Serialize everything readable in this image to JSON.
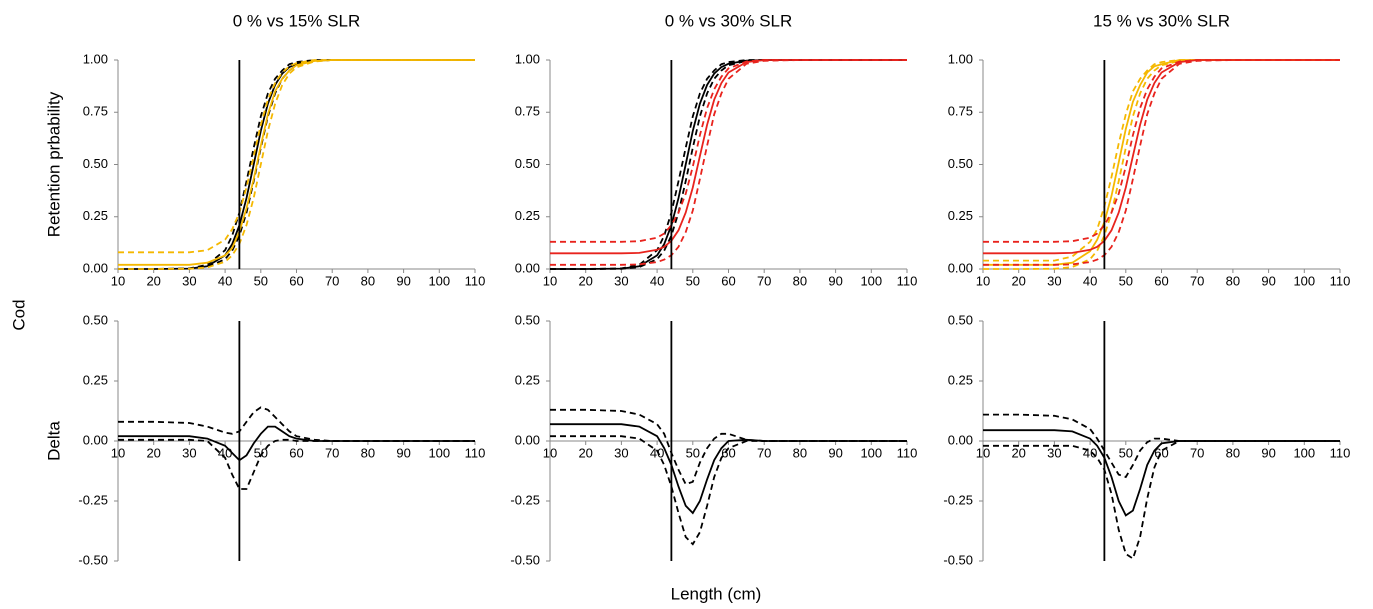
{
  "row_label": "Cod",
  "xlabel": "Length (cm)",
  "chart_data": [
    {
      "type": "line",
      "title": "0 % vs 15% SLR",
      "ylabel": "Retention prbability",
      "reference_x": 44,
      "xlim": [
        10,
        110
      ],
      "xticks": [
        10,
        20,
        30,
        40,
        50,
        60,
        70,
        80,
        90,
        100,
        110
      ],
      "ylim": [
        0,
        1
      ],
      "yticks": [
        {
          "value": 0,
          "label": "0.00"
        },
        {
          "value": 0.25,
          "label": "0.25"
        },
        {
          "value": 0.5,
          "label": "0.50"
        },
        {
          "value": 0.75,
          "label": "0.75"
        },
        {
          "value": 1,
          "label": "1.00"
        }
      ],
      "x": [
        10,
        20,
        30,
        35,
        40,
        42,
        44,
        46,
        48,
        50,
        52,
        54,
        56,
        58,
        60,
        65,
        70,
        80,
        110
      ],
      "series": [
        {
          "color": "#000000",
          "dash": false,
          "values": [
            0,
            0,
            0.002,
            0.013,
            0.065,
            0.119,
            0.209,
            0.339,
            0.5,
            0.661,
            0.791,
            0.881,
            0.935,
            0.966,
            0.982,
            0.997,
            1,
            1,
            1
          ]
        },
        {
          "color": "#000000",
          "dash": true,
          "values": [
            0,
            0,
            0.003,
            0.02,
            0.09,
            0.16,
            0.27,
            0.42,
            0.58,
            0.73,
            0.84,
            0.91,
            0.95,
            0.98,
            0.99,
            1,
            1,
            1,
            1
          ]
        },
        {
          "color": "#000000",
          "dash": true,
          "values": [
            0,
            0,
            0.001,
            0.009,
            0.047,
            0.088,
            0.16,
            0.27,
            0.42,
            0.58,
            0.73,
            0.84,
            0.91,
            0.95,
            0.975,
            0.995,
            1,
            1,
            1
          ]
        },
        {
          "color": "#f5b800",
          "dash": false,
          "values": [
            0.02,
            0.02,
            0.02,
            0.03,
            0.065,
            0.1,
            0.18,
            0.29,
            0.43,
            0.59,
            0.74,
            0.85,
            0.91,
            0.95,
            0.975,
            0.995,
            1,
            1,
            1
          ]
        },
        {
          "color": "#f5b800",
          "dash": true,
          "values": [
            0.08,
            0.08,
            0.08,
            0.09,
            0.14,
            0.19,
            0.27,
            0.39,
            0.54,
            0.69,
            0.81,
            0.89,
            0.94,
            0.97,
            0.985,
            1,
            1,
            1,
            1
          ]
        },
        {
          "color": "#f5b800",
          "dash": true,
          "values": [
            0,
            0,
            0.001,
            0.007,
            0.035,
            0.065,
            0.12,
            0.21,
            0.34,
            0.5,
            0.66,
            0.79,
            0.88,
            0.935,
            0.965,
            0.993,
            1,
            1,
            1
          ]
        }
      ]
    },
    {
      "type": "line",
      "title": "0 % vs 30% SLR",
      "reference_x": 44,
      "xlim": [
        10,
        110
      ],
      "xticks": [
        10,
        20,
        30,
        40,
        50,
        60,
        70,
        80,
        90,
        100,
        110
      ],
      "ylim": [
        0,
        1
      ],
      "yticks": [
        {
          "value": 0,
          "label": "0.00"
        },
        {
          "value": 0.25,
          "label": "0.25"
        },
        {
          "value": 0.5,
          "label": "0.50"
        },
        {
          "value": 0.75,
          "label": "0.75"
        },
        {
          "value": 1,
          "label": "1.00"
        }
      ],
      "x": [
        10,
        20,
        30,
        35,
        40,
        42,
        44,
        46,
        48,
        50,
        52,
        54,
        56,
        58,
        60,
        65,
        70,
        80,
        110
      ],
      "series": [
        {
          "color": "#000000",
          "dash": false,
          "values": [
            0,
            0,
            0.002,
            0.013,
            0.065,
            0.119,
            0.209,
            0.339,
            0.5,
            0.661,
            0.791,
            0.881,
            0.935,
            0.966,
            0.982,
            0.997,
            1,
            1,
            1
          ]
        },
        {
          "color": "#000000",
          "dash": true,
          "values": [
            0,
            0,
            0.003,
            0.02,
            0.09,
            0.16,
            0.27,
            0.42,
            0.58,
            0.73,
            0.84,
            0.91,
            0.95,
            0.98,
            0.99,
            1,
            1,
            1,
            1
          ]
        },
        {
          "color": "#000000",
          "dash": true,
          "values": [
            0,
            0,
            0.001,
            0.009,
            0.047,
            0.088,
            0.16,
            0.27,
            0.42,
            0.58,
            0.73,
            0.84,
            0.91,
            0.95,
            0.975,
            0.995,
            1,
            1,
            1
          ]
        },
        {
          "color": "#e8231d",
          "dash": false,
          "values": [
            0.075,
            0.075,
            0.075,
            0.077,
            0.092,
            0.106,
            0.135,
            0.185,
            0.27,
            0.39,
            0.54,
            0.69,
            0.81,
            0.89,
            0.94,
            0.99,
            1,
            1,
            1
          ]
        },
        {
          "color": "#e8231d",
          "dash": true,
          "values": [
            0.13,
            0.13,
            0.13,
            0.133,
            0.15,
            0.17,
            0.21,
            0.27,
            0.36,
            0.49,
            0.64,
            0.77,
            0.86,
            0.92,
            0.96,
            0.993,
            1,
            1,
            1
          ]
        },
        {
          "color": "#e8231d",
          "dash": true,
          "values": [
            0.02,
            0.02,
            0.02,
            0.022,
            0.033,
            0.045,
            0.066,
            0.106,
            0.176,
            0.28,
            0.43,
            0.59,
            0.74,
            0.84,
            0.91,
            0.982,
            0.996,
            1,
            1
          ]
        }
      ]
    },
    {
      "type": "line",
      "title": "15 % vs 30% SLR",
      "reference_x": 44,
      "xlim": [
        10,
        110
      ],
      "xticks": [
        10,
        20,
        30,
        40,
        50,
        60,
        70,
        80,
        90,
        100,
        110
      ],
      "ylim": [
        0,
        1
      ],
      "yticks": [
        {
          "value": 0,
          "label": "0.00"
        },
        {
          "value": 0.25,
          "label": "0.25"
        },
        {
          "value": 0.5,
          "label": "0.50"
        },
        {
          "value": 0.75,
          "label": "0.75"
        },
        {
          "value": 1,
          "label": "1.00"
        }
      ],
      "x": [
        10,
        20,
        30,
        35,
        40,
        42,
        44,
        46,
        48,
        50,
        52,
        54,
        56,
        58,
        60,
        65,
        70,
        80,
        110
      ],
      "series": [
        {
          "color": "#f5b800",
          "dash": false,
          "values": [
            0.02,
            0.02,
            0.02,
            0.03,
            0.085,
            0.14,
            0.225,
            0.35,
            0.51,
            0.67,
            0.8,
            0.88,
            0.94,
            0.97,
            0.98,
            1,
            1,
            1,
            1
          ]
        },
        {
          "color": "#f5b800",
          "dash": true,
          "values": [
            0.04,
            0.04,
            0.04,
            0.06,
            0.13,
            0.19,
            0.3,
            0.44,
            0.6,
            0.74,
            0.85,
            0.91,
            0.95,
            0.98,
            0.99,
            1,
            1,
            1,
            1
          ]
        },
        {
          "color": "#f5b800",
          "dash": true,
          "values": [
            0,
            0,
            0.001,
            0.009,
            0.047,
            0.088,
            0.16,
            0.27,
            0.42,
            0.58,
            0.73,
            0.84,
            0.91,
            0.95,
            0.975,
            0.995,
            1,
            1,
            1
          ]
        },
        {
          "color": "#e8231d",
          "dash": false,
          "values": [
            0.075,
            0.075,
            0.075,
            0.077,
            0.092,
            0.106,
            0.135,
            0.185,
            0.27,
            0.39,
            0.54,
            0.69,
            0.81,
            0.89,
            0.94,
            0.99,
            1,
            1,
            1
          ]
        },
        {
          "color": "#e8231d",
          "dash": true,
          "values": [
            0.13,
            0.13,
            0.13,
            0.133,
            0.15,
            0.17,
            0.21,
            0.27,
            0.36,
            0.49,
            0.64,
            0.77,
            0.86,
            0.92,
            0.96,
            0.993,
            1,
            1,
            1
          ]
        },
        {
          "color": "#e8231d",
          "dash": true,
          "values": [
            0.02,
            0.02,
            0.02,
            0.022,
            0.033,
            0.045,
            0.066,
            0.106,
            0.176,
            0.28,
            0.43,
            0.59,
            0.74,
            0.84,
            0.91,
            0.982,
            0.996,
            1,
            1
          ]
        }
      ]
    },
    {
      "type": "line",
      "ylabel": "Delta",
      "reference_x": 44,
      "xlim": [
        10,
        110
      ],
      "xticks": [
        10,
        20,
        30,
        40,
        50,
        60,
        70,
        80,
        90,
        100,
        110
      ],
      "ylim": [
        -0.5,
        0.5
      ],
      "yticks": [
        {
          "value": -0.5,
          "label": "-0.50"
        },
        {
          "value": -0.25,
          "label": "-0.25"
        },
        {
          "value": 0,
          "label": "0.00"
        },
        {
          "value": 0.25,
          "label": "0.25"
        },
        {
          "value": 0.5,
          "label": "0.50"
        }
      ],
      "x": [
        10,
        20,
        30,
        35,
        40,
        42,
        44,
        46,
        48,
        50,
        52,
        54,
        56,
        58,
        60,
        65,
        70,
        80,
        110
      ],
      "series": [
        {
          "color": "#000000",
          "dash": false,
          "values": [
            0.02,
            0.02,
            0.02,
            0.01,
            -0.02,
            -0.05,
            -0.08,
            -0.06,
            -0.01,
            0.03,
            0.06,
            0.06,
            0.04,
            0.02,
            0.01,
            0,
            0,
            0,
            0
          ]
        },
        {
          "color": "#000000",
          "dash": true,
          "values": [
            0.08,
            0.08,
            0.075,
            0.06,
            0.035,
            0.03,
            0.04,
            0.08,
            0.12,
            0.14,
            0.13,
            0.1,
            0.07,
            0.04,
            0.02,
            0.005,
            0,
            0,
            0
          ]
        },
        {
          "color": "#000000",
          "dash": true,
          "values": [
            0.005,
            0.005,
            0.005,
            0,
            -0.07,
            -0.14,
            -0.2,
            -0.2,
            -0.13,
            -0.06,
            -0.02,
            0,
            0.005,
            0.005,
            0,
            0,
            0,
            0,
            0
          ]
        }
      ]
    },
    {
      "type": "line",
      "reference_x": 44,
      "xlim": [
        10,
        110
      ],
      "xticks": [
        10,
        20,
        30,
        40,
        50,
        60,
        70,
        80,
        90,
        100,
        110
      ],
      "ylim": [
        -0.5,
        0.5
      ],
      "yticks": [
        {
          "value": -0.5,
          "label": "-0.50"
        },
        {
          "value": -0.25,
          "label": "-0.25"
        },
        {
          "value": 0,
          "label": "0.00"
        },
        {
          "value": 0.25,
          "label": "0.25"
        },
        {
          "value": 0.5,
          "label": "0.50"
        }
      ],
      "x": [
        10,
        20,
        30,
        35,
        40,
        42,
        44,
        46,
        48,
        50,
        52,
        54,
        56,
        58,
        60,
        65,
        70,
        80,
        110
      ],
      "series": [
        {
          "color": "#000000",
          "dash": false,
          "values": [
            0.07,
            0.07,
            0.07,
            0.06,
            0.02,
            -0.03,
            -0.1,
            -0.19,
            -0.27,
            -0.3,
            -0.25,
            -0.16,
            -0.08,
            -0.03,
            0,
            0.005,
            0,
            0,
            0
          ]
        },
        {
          "color": "#000000",
          "dash": true,
          "values": [
            0.13,
            0.13,
            0.125,
            0.11,
            0.07,
            0.03,
            -0.05,
            -0.12,
            -0.18,
            -0.17,
            -0.09,
            -0.03,
            0.01,
            0.03,
            0.03,
            0.005,
            0,
            0,
            0
          ]
        },
        {
          "color": "#000000",
          "dash": true,
          "values": [
            0.02,
            0.02,
            0.02,
            0.01,
            -0.04,
            -0.1,
            -0.19,
            -0.3,
            -0.4,
            -0.43,
            -0.38,
            -0.27,
            -0.15,
            -0.07,
            -0.03,
            0,
            0,
            0,
            0
          ]
        }
      ]
    },
    {
      "type": "line",
      "reference_x": 44,
      "xlim": [
        10,
        110
      ],
      "xticks": [
        10,
        20,
        30,
        40,
        50,
        60,
        70,
        80,
        90,
        100,
        110
      ],
      "ylim": [
        -0.5,
        0.5
      ],
      "yticks": [
        {
          "value": -0.5,
          "label": "-0.50"
        },
        {
          "value": -0.25,
          "label": "-0.25"
        },
        {
          "value": 0,
          "label": "0.00"
        },
        {
          "value": 0.25,
          "label": "0.25"
        },
        {
          "value": 0.5,
          "label": "0.50"
        }
      ],
      "x": [
        10,
        20,
        30,
        35,
        40,
        42,
        44,
        46,
        48,
        50,
        52,
        54,
        56,
        58,
        60,
        65,
        70,
        80,
        110
      ],
      "series": [
        {
          "color": "#000000",
          "dash": false,
          "values": [
            0.045,
            0.045,
            0.045,
            0.04,
            0.01,
            -0.02,
            -0.07,
            -0.15,
            -0.25,
            -0.31,
            -0.29,
            -0.2,
            -0.1,
            -0.04,
            -0.01,
            0,
            0,
            0,
            0
          ]
        },
        {
          "color": "#000000",
          "dash": true,
          "values": [
            0.11,
            0.11,
            0.105,
            0.09,
            0.05,
            0.01,
            -0.04,
            -0.09,
            -0.14,
            -0.15,
            -0.1,
            -0.04,
            -0.005,
            0.01,
            0.01,
            0,
            0,
            0,
            0
          ]
        },
        {
          "color": "#000000",
          "dash": true,
          "values": [
            -0.02,
            -0.02,
            -0.02,
            -0.02,
            -0.04,
            -0.07,
            -0.12,
            -0.22,
            -0.37,
            -0.47,
            -0.49,
            -0.4,
            -0.24,
            -0.11,
            -0.04,
            0,
            0,
            0,
            0
          ]
        }
      ]
    }
  ]
}
